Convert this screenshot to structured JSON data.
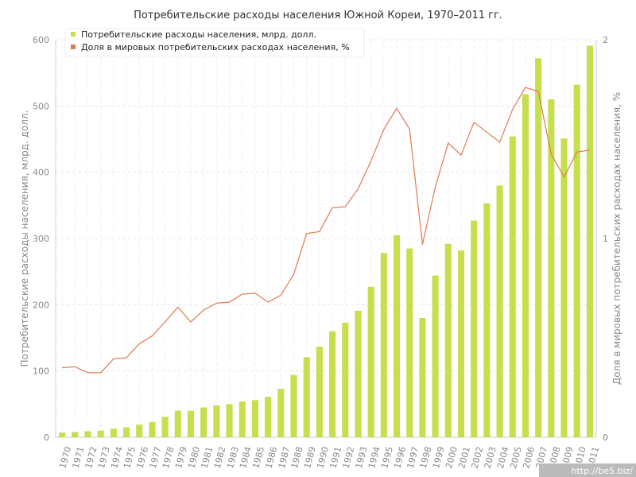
{
  "chart_data": {
    "type": "bar",
    "title": "Потребительские расходы населения Южной Кореи, 1970–2011 гг.",
    "categories": [
      "1970",
      "1971",
      "1972",
      "1973",
      "1974",
      "1975",
      "1976",
      "1977",
      "1978",
      "1979",
      "1980",
      "1981",
      "1982",
      "1983",
      "1984",
      "1985",
      "1986",
      "1987",
      "1988",
      "1989",
      "1990",
      "1991",
      "1992",
      "1993",
      "1994",
      "1995",
      "1996",
      "1997",
      "1998",
      "1999",
      "2000",
      "2001",
      "2002",
      "2003",
      "2004",
      "2005",
      "2006",
      "2007",
      "2008",
      "2009",
      "2010",
      "2011"
    ],
    "ylabel": "Потребительские расходы населения, млрд. долл.",
    "y2label": "Доля в мировых потребительских расходах населения, %",
    "ylim": [
      0,
      600
    ],
    "y2lim": [
      0,
      2
    ],
    "yticks": [
      0,
      100,
      200,
      300,
      400,
      500,
      600
    ],
    "y2ticks": [
      0,
      1,
      2
    ],
    "grid": true,
    "legend_position": "top-left",
    "series": [
      {
        "name": "Потребительские расходы населения, млрд. долл.",
        "type": "bar",
        "axis": "left",
        "color": "#c5df4d",
        "values": [
          7,
          8,
          9,
          10,
          13,
          15,
          19,
          23,
          31,
          40,
          40,
          45,
          48,
          50,
          54,
          56,
          61,
          73,
          94,
          121,
          137,
          160,
          173,
          191,
          227,
          278,
          305,
          285,
          180,
          244,
          292,
          282,
          327,
          353,
          380,
          454,
          518,
          572,
          510,
          451,
          532,
          591
        ]
      },
      {
        "name": "Доля в мировых потребительских расходах населения, %",
        "type": "line",
        "axis": "right",
        "color": "#e07a50",
        "values": [
          0.35,
          0.355,
          0.325,
          0.325,
          0.395,
          0.4,
          0.47,
          0.51,
          0.58,
          0.655,
          0.58,
          0.64,
          0.675,
          0.68,
          0.72,
          0.725,
          0.68,
          0.715,
          0.82,
          1.025,
          1.035,
          1.155,
          1.16,
          1.25,
          1.39,
          1.55,
          1.655,
          1.55,
          0.97,
          1.26,
          1.48,
          1.42,
          1.585,
          1.535,
          1.485,
          1.65,
          1.76,
          1.74,
          1.425,
          1.31,
          1.435,
          1.445
        ]
      }
    ]
  },
  "watermark": "http://be5.biz/"
}
